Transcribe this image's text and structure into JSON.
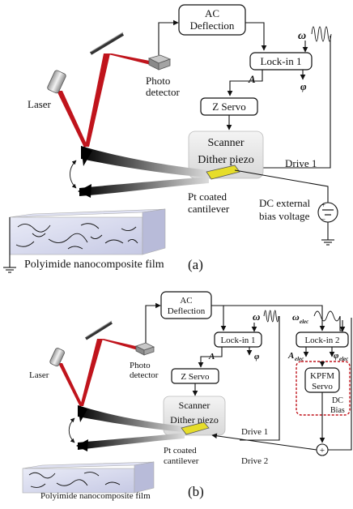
{
  "panel_a": {
    "ac_deflection_line1": "AC",
    "ac_deflection_line2": "Deflection",
    "lock_in": "Lock-in 1",
    "omega": "ω",
    "A": "A",
    "phi": "φ",
    "z_servo": "Z Servo",
    "scanner": "Scanner",
    "dither_piezo": "Dither piezo",
    "drive": "Drive 1",
    "laser": "Laser",
    "photo_line1": "Photo",
    "photo_line2": "detector",
    "cantilever_line1": "Pt coated",
    "cantilever_line2": "cantilever",
    "dc_line1": "DC external",
    "dc_line2": "bias voltage",
    "film": "Polyimide nanocomposite film",
    "panel_label": "(a)"
  },
  "panel_b": {
    "ac_deflection_line1": "AC",
    "ac_deflection_line2": "Deflection",
    "lock_in_1": "Lock-in 1",
    "lock_in_2": "Lock-in 2",
    "omega": "ω",
    "omega_elec": "ω",
    "elec_sub": "elec",
    "A": "A",
    "phi": "φ",
    "A_elec": "A",
    "phi_elec": "φ",
    "z_servo": "Z Servo",
    "kpfm_line1": "KPFM",
    "kpfm_line2": "Servo",
    "dc_line1": "DC",
    "dc_line2": "Bias",
    "scanner": "Scanner",
    "dither_piezo": "Dither piezo",
    "drive_1": "Drive 1",
    "drive_2": "Drive 2",
    "plus": "+",
    "laser": "Laser",
    "photo_line1": "Photo",
    "photo_line2": "detector",
    "cantilever_line1": "Pt coated",
    "cantilever_line2": "cantilever",
    "film": "Polyimide nanocomposite film",
    "panel_label": "(b)"
  },
  "colors": {
    "laser_beam": "#c0141c",
    "piezo": "#e6dd2a",
    "kpfm_dash": "#c0141c",
    "film_tint": "#cfd2ea"
  },
  "icons": [
    "laser-icon",
    "mirror-icon",
    "photodetector-icon",
    "sine-wave-icon",
    "battery-icon",
    "ground-icon",
    "curved-arrow-icon"
  ]
}
